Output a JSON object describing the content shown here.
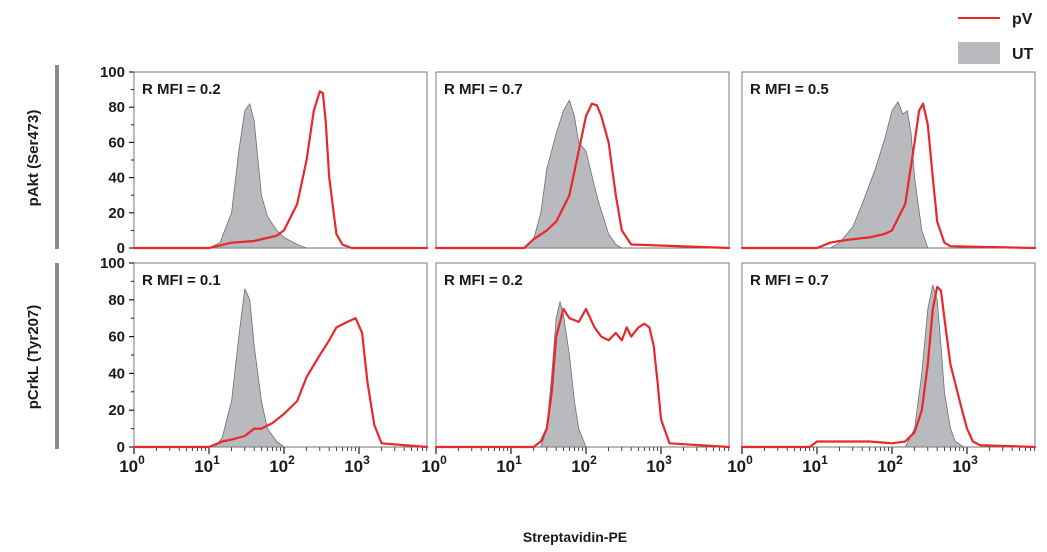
{
  "figure": {
    "xlabel": "Streptavidin-PE",
    "row_labels": [
      "pAkt (Ser473)",
      "pCrkL (Tyr207)"
    ]
  },
  "legend": [
    {
      "label": "pV",
      "kind": "line",
      "color": "#e8282b"
    },
    {
      "label": "UT",
      "kind": "fill",
      "color": "#b9babd"
    }
  ],
  "chart_data": {
    "type": "area",
    "x_scale": "log10",
    "xlim": [
      1,
      10000
    ],
    "ylim": [
      0,
      100
    ],
    "x_ticks": [
      {
        "value": 1,
        "base": "10",
        "exp": "0"
      },
      {
        "value": 10,
        "base": "10",
        "exp": "1"
      },
      {
        "value": 100,
        "base": "10",
        "exp": "2"
      },
      {
        "value": 1000,
        "base": "10",
        "exp": "3"
      }
    ],
    "y_ticks": [
      0,
      20,
      40,
      60,
      80,
      100
    ],
    "series_names": [
      "pV",
      "UT"
    ],
    "colors": {
      "pV": "#e8282b",
      "UT_fill": "#b9babd",
      "UT_edge": "#6e6f72"
    },
    "panels": [
      {
        "row": 0,
        "col": 0,
        "annotation": "R MFI = 0.2",
        "UT": {
          "x": [
            1,
            10,
            14,
            20,
            25,
            30,
            35,
            40,
            45,
            50,
            60,
            80,
            100,
            150,
            200,
            10000
          ],
          "y": [
            0,
            0,
            3,
            20,
            55,
            78,
            82,
            72,
            50,
            30,
            18,
            10,
            6,
            2,
            0,
            0
          ]
        },
        "pV": {
          "x": [
            1,
            10,
            20,
            40,
            80,
            100,
            150,
            200,
            250,
            300,
            330,
            360,
            400,
            500,
            600,
            800,
            10000
          ],
          "y": [
            0,
            0,
            3,
            4,
            7,
            10,
            25,
            50,
            78,
            89,
            88,
            72,
            40,
            8,
            2,
            0,
            0
          ]
        }
      },
      {
        "row": 0,
        "col": 1,
        "annotation": "R MFI = 0.7",
        "UT": {
          "x": [
            1,
            15,
            20,
            25,
            30,
            40,
            50,
            60,
            70,
            80,
            100,
            130,
            150,
            200,
            250,
            300,
            10000
          ],
          "y": [
            0,
            0,
            5,
            20,
            45,
            65,
            78,
            84,
            75,
            60,
            55,
            35,
            25,
            8,
            2,
            0,
            0
          ]
        },
        "pV": {
          "x": [
            1,
            15,
            20,
            30,
            40,
            60,
            80,
            100,
            120,
            140,
            160,
            200,
            250,
            300,
            400,
            10000
          ],
          "y": [
            0,
            0,
            5,
            10,
            15,
            30,
            55,
            75,
            82,
            81,
            75,
            60,
            30,
            10,
            2,
            0
          ]
        }
      },
      {
        "row": 0,
        "col": 2,
        "annotation": "R MFI = 0.5",
        "UT": {
          "x": [
            1,
            15,
            20,
            30,
            40,
            60,
            80,
            100,
            120,
            140,
            160,
            180,
            200,
            250,
            300,
            10000
          ],
          "y": [
            0,
            0,
            3,
            12,
            25,
            45,
            62,
            78,
            83,
            76,
            78,
            65,
            40,
            10,
            0,
            0
          ]
        },
        "pV": {
          "x": [
            1,
            10,
            15,
            20,
            30,
            50,
            80,
            100,
            150,
            200,
            230,
            260,
            300,
            350,
            400,
            500,
            600,
            10000
          ],
          "y": [
            0,
            0,
            3,
            4,
            5,
            6,
            8,
            10,
            25,
            60,
            78,
            82,
            70,
            40,
            15,
            3,
            1,
            0
          ]
        }
      },
      {
        "row": 1,
        "col": 0,
        "annotation": "R MFI = 0.1",
        "UT": {
          "x": [
            1,
            12,
            15,
            20,
            25,
            30,
            35,
            40,
            50,
            60,
            80,
            100,
            10000
          ],
          "y": [
            0,
            0,
            5,
            25,
            60,
            86,
            80,
            55,
            25,
            10,
            3,
            0,
            0
          ]
        },
        "pV": {
          "x": [
            1,
            10,
            15,
            20,
            30,
            40,
            50,
            70,
            100,
            150,
            200,
            300,
            400,
            500,
            700,
            900,
            1100,
            1300,
            1600,
            2000,
            10000
          ],
          "y": [
            0,
            0,
            3,
            4,
            6,
            10,
            10,
            13,
            18,
            25,
            38,
            50,
            58,
            65,
            68,
            70,
            62,
            35,
            12,
            2,
            0
          ]
        }
      },
      {
        "row": 1,
        "col": 1,
        "annotation": "R MFI = 0.2",
        "UT": {
          "x": [
            1,
            25,
            30,
            35,
            40,
            45,
            50,
            60,
            70,
            80,
            100,
            10000
          ],
          "y": [
            0,
            0,
            10,
            40,
            70,
            79,
            72,
            50,
            25,
            10,
            0,
            0
          ]
        },
        "pV": {
          "x": [
            1,
            20,
            25,
            30,
            35,
            40,
            50,
            60,
            80,
            100,
            130,
            160,
            200,
            250,
            300,
            350,
            400,
            500,
            600,
            700,
            800,
            900,
            1000,
            1300,
            10000
          ],
          "y": [
            0,
            0,
            3,
            10,
            30,
            60,
            75,
            70,
            68,
            75,
            65,
            60,
            58,
            62,
            58,
            65,
            60,
            65,
            67,
            65,
            55,
            35,
            15,
            2,
            0
          ]
        }
      },
      {
        "row": 1,
        "col": 2,
        "annotation": "R MFI = 0.7",
        "UT": {
          "x": [
            1,
            150,
            200,
            250,
            300,
            350,
            400,
            450,
            500,
            600,
            700,
            900,
            10000
          ],
          "y": [
            0,
            0,
            10,
            40,
            75,
            88,
            80,
            55,
            30,
            10,
            3,
            0,
            0
          ]
        },
        "pV": {
          "x": [
            1,
            8,
            10,
            20,
            50,
            100,
            150,
            200,
            250,
            300,
            350,
            400,
            450,
            500,
            600,
            800,
            1000,
            1200,
            1500,
            10000
          ],
          "y": [
            0,
            0,
            3,
            3,
            3,
            2,
            3,
            8,
            20,
            45,
            75,
            87,
            85,
            70,
            45,
            25,
            10,
            3,
            1,
            0
          ]
        }
      }
    ]
  }
}
